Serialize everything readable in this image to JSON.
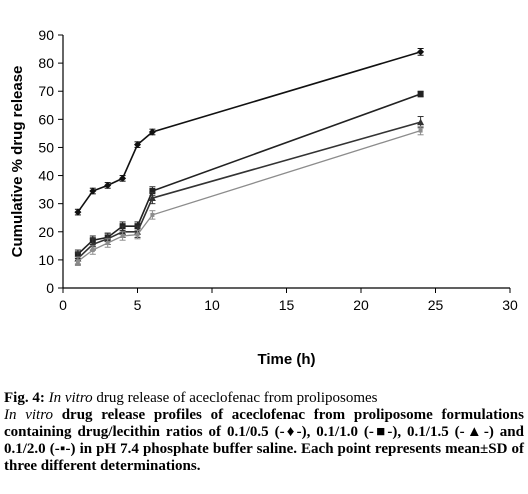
{
  "chart_data": {
    "type": "line",
    "title": "",
    "xlabel": "Time (h)",
    "ylabel": "Cumulative % drug release",
    "xlim": [
      0,
      30
    ],
    "ylim": [
      0,
      90
    ],
    "xticks": [
      0,
      5,
      10,
      15,
      20,
      25,
      30
    ],
    "yticks": [
      0,
      10,
      20,
      30,
      40,
      50,
      60,
      70,
      80,
      90
    ],
    "grid": false,
    "legend": "none",
    "series": [
      {
        "marker": "diamond",
        "x": [
          1,
          2,
          3,
          4,
          5,
          6,
          24
        ],
        "y": [
          27,
          34.5,
          36.5,
          39,
          51,
          55.5,
          84
        ],
        "err": [
          1,
          1,
          1,
          1,
          1,
          1,
          1.2
        ]
      },
      {
        "marker": "square",
        "x": [
          1,
          2,
          3,
          4,
          5,
          6,
          24
        ],
        "y": [
          12,
          17,
          18,
          22,
          22,
          34.5,
          69
        ],
        "err": [
          1.5,
          1.5,
          1.5,
          1.5,
          1.5,
          1.5,
          1
        ]
      },
      {
        "marker": "triangle",
        "x": [
          1,
          2,
          3,
          4,
          5,
          6,
          24
        ],
        "y": [
          10.5,
          15.5,
          17.5,
          20,
          20,
          32,
          59
        ],
        "err": [
          2,
          2,
          2,
          2,
          2,
          2,
          2
        ]
      },
      {
        "marker": "dot",
        "x": [
          1,
          2,
          3,
          4,
          5,
          6,
          24
        ],
        "y": [
          9.5,
          13.5,
          16,
          18.5,
          19,
          26,
          56
        ],
        "err": [
          1.5,
          1.5,
          1.5,
          1.5,
          1.5,
          1.5,
          1.5
        ]
      }
    ]
  },
  "caption": {
    "fig_label": "Fig. 4:",
    "title_italic": "In vitro",
    "title_rest": " drug release of aceclofenac from proliposomes",
    "body_italic": "In vitro",
    "body_rest": " drug release profiles of aceclofenac from proliposome formulations containing drug/lecithin ratios of 0.1/0.5 (-♦-), 0.1/1.0 (-■-), 0.1/1.5 (-▲-) and 0.1/2.0 (-▪-) in pH 7.4 phosphate buffer saline. Each point represents mean±SD of three different determinations."
  },
  "colors": {
    "series_1": "#111111",
    "series_2": "#222222",
    "series_3": "#333333",
    "series_4": "#8c8c8c"
  }
}
